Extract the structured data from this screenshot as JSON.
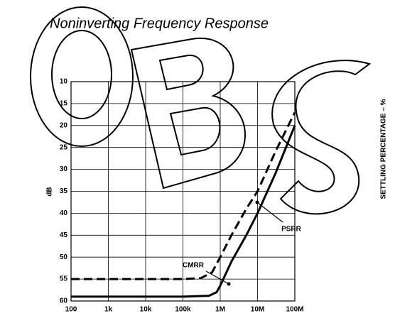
{
  "chart_data": {
    "type": "line",
    "title": "Noninverting Frequency Response",
    "y_label": "dB",
    "side_label": "SETTLING PERCENTAGE – %",
    "log_x": true,
    "grid": true,
    "xlim": [
      100,
      100000000
    ],
    "xticks": [
      {
        "value": 100,
        "label": "100"
      },
      {
        "value": 1000,
        "label": "1k"
      },
      {
        "value": 10000,
        "label": "10k"
      },
      {
        "value": 100000,
        "label": "100k"
      },
      {
        "value": 1000000,
        "label": "1M"
      },
      {
        "value": 10000000,
        "label": "10M"
      },
      {
        "value": 100000000,
        "label": "100M"
      }
    ],
    "ylim": [
      60,
      10
    ],
    "yticks": [
      10,
      15,
      20,
      25,
      30,
      35,
      40,
      45,
      50,
      55,
      60
    ],
    "series": [
      {
        "name": "CMRR",
        "color": "#000000",
        "dashed": true,
        "x": [
          100,
          1000,
          10000,
          100000,
          300000,
          600000,
          1000000,
          2000000,
          5000000,
          10000000,
          30000000,
          100000000
        ],
        "values": [
          55,
          55,
          55,
          55,
          54.8,
          53.5,
          50,
          45,
          39,
          35,
          26,
          17
        ]
      },
      {
        "name": "PSRR",
        "color": "#000000",
        "dashed": false,
        "x": [
          100,
          1000,
          10000,
          100000,
          500000,
          800000,
          1000000,
          2000000,
          5000000,
          10000000,
          30000000,
          100000000
        ],
        "values": [
          59,
          59,
          59,
          59,
          58.8,
          58,
          56.5,
          51,
          45,
          40,
          31,
          20
        ]
      }
    ]
  }
}
